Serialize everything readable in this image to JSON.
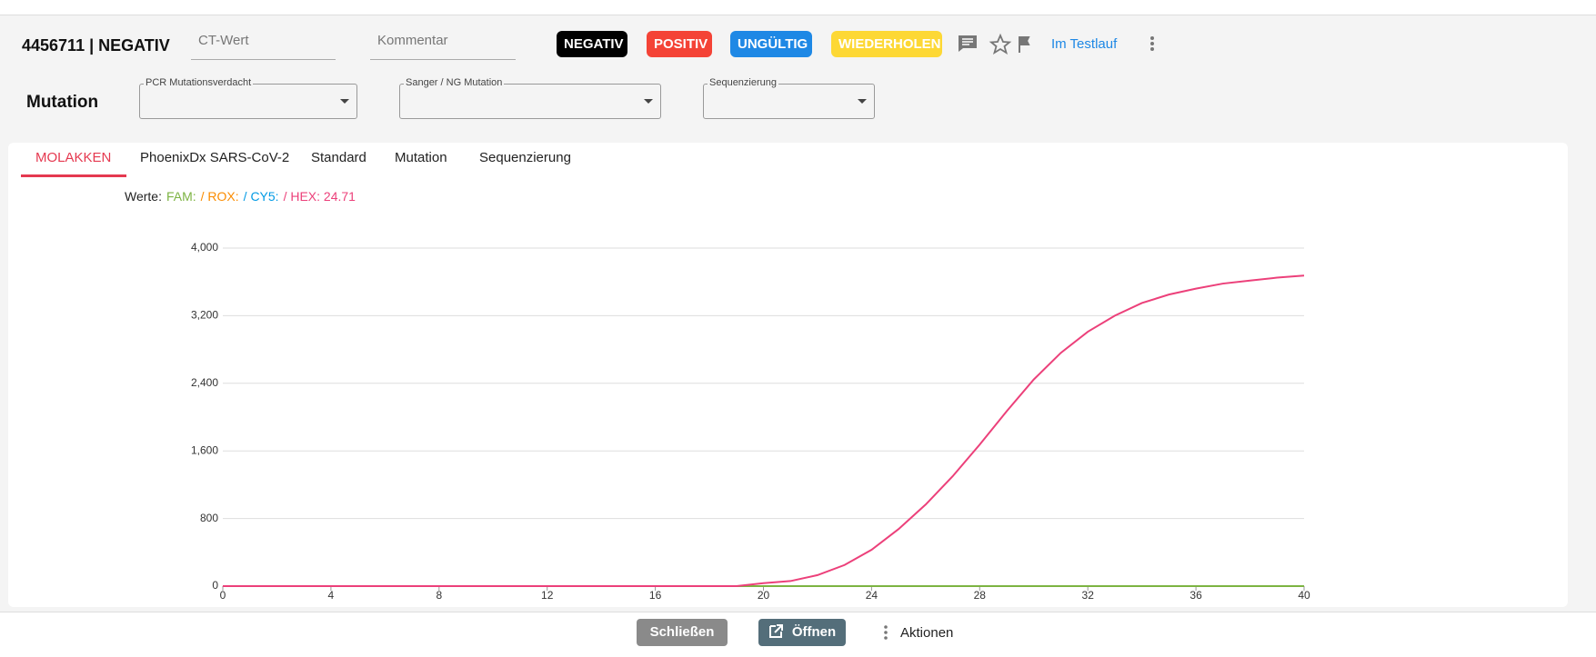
{
  "header": {
    "title": "4456711 | NEGATIV",
    "ct_placeholder": "CT-Wert",
    "comment_placeholder": "Kommentar",
    "buttons": [
      "NEGATIV",
      "POSITIV",
      "UNGÜLTIG",
      "WIEDERHOLEN"
    ],
    "status": "Im Testlauf"
  },
  "mutation": {
    "label": "Mutation",
    "fields": [
      "PCR Mutationsverdacht",
      "Sanger / NG Mutation",
      "Sequenzierung"
    ]
  },
  "tabs": [
    "MOLAKKEN",
    "PhoenixDx SARS-CoV-2",
    "Standard",
    "Mutation",
    "Sequenzierung"
  ],
  "chart_data": {
    "type": "line",
    "legend_prefix": "Werte:",
    "legend": [
      {
        "text": "FAM:",
        "color": "#7cb342"
      },
      {
        "text": "/ ROX:",
        "color": "#fb8c00"
      },
      {
        "text": "/ CY5:",
        "color": "#039be5"
      },
      {
        "text": "/ HEX: 24.71",
        "color": "#ec407a"
      }
    ],
    "x": [
      0,
      1,
      2,
      3,
      4,
      5,
      6,
      7,
      8,
      9,
      10,
      11,
      12,
      13,
      14,
      15,
      16,
      17,
      18,
      19,
      20,
      21,
      22,
      23,
      24,
      25,
      26,
      27,
      28,
      29,
      30,
      31,
      32,
      33,
      34,
      35,
      36,
      37,
      38,
      39,
      40
    ],
    "series": [
      {
        "color": "#7cb342",
        "values": [
          0,
          0,
          0,
          0,
          0,
          0,
          0,
          0,
          0,
          0,
          0,
          0,
          0,
          0,
          0,
          0,
          0,
          0,
          0,
          0,
          0,
          0,
          0,
          0,
          0,
          0,
          0,
          0,
          0,
          0,
          0,
          0,
          0,
          0,
          0,
          0,
          0,
          0,
          0,
          0,
          0
        ]
      },
      {
        "color": "#ec407a",
        "values": [
          0,
          0,
          0,
          0,
          0,
          0,
          0,
          0,
          0,
          0,
          0,
          0,
          0,
          0,
          0,
          0,
          0,
          0,
          0,
          0,
          35,
          60,
          130,
          250,
          430,
          675,
          965,
          1300,
          1675,
          2070,
          2445,
          2760,
          3010,
          3200,
          3350,
          3450,
          3520,
          3580,
          3615,
          3650,
          3675
        ]
      }
    ],
    "xlim": [
      0,
      40
    ],
    "xticks": [
      0,
      4,
      8,
      12,
      16,
      20,
      24,
      28,
      32,
      36,
      40
    ],
    "ylim": [
      0,
      4000
    ],
    "yticks": [
      0,
      {
        "value": 800,
        "label": "800"
      },
      {
        "value": 1600,
        "label": "1,600"
      },
      {
        "value": 2400,
        "label": "2,400"
      },
      {
        "value": 3200,
        "label": "3,200"
      },
      {
        "value": 4000,
        "label": "4,000"
      }
    ],
    "grid": true
  },
  "footer": {
    "buttons": [
      "Schließen",
      "Öffnen",
      "Aktionen"
    ]
  }
}
